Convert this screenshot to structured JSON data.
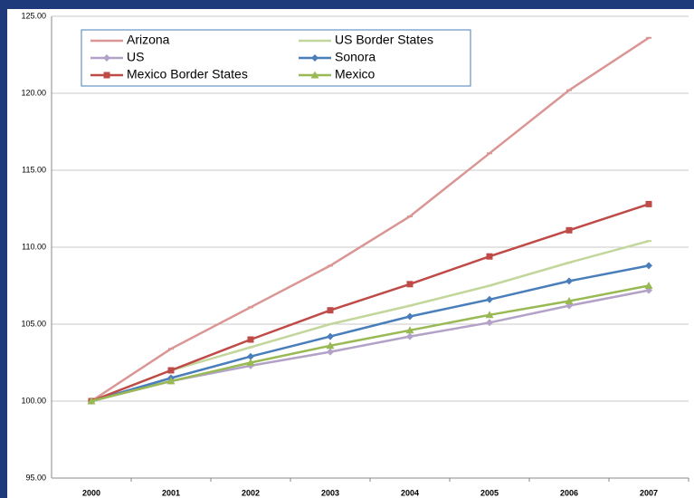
{
  "chart_data": {
    "type": "line",
    "categories": [
      "2000",
      "2001",
      "2002",
      "2003",
      "2004",
      "2005",
      "2006",
      "2007"
    ],
    "series": [
      {
        "name": "Arizona",
        "color": "#d99694",
        "marker": "dash",
        "values": [
          100,
          103.4,
          106.1,
          108.8,
          112.0,
          116.1,
          120.2,
          123.6
        ]
      },
      {
        "name": "US Border States",
        "color": "#c3d69b",
        "marker": "dash",
        "values": [
          100,
          102.0,
          103.5,
          105.0,
          106.2,
          107.5,
          109.0,
          110.4
        ]
      },
      {
        "name": "US",
        "color": "#b3a2c7",
        "marker": "diamond",
        "values": [
          100,
          101.3,
          102.3,
          103.2,
          104.2,
          105.1,
          106.2,
          107.2
        ]
      },
      {
        "name": "Sonora",
        "color": "#4a7ebb",
        "marker": "diamond",
        "values": [
          100,
          101.5,
          102.9,
          104.2,
          105.5,
          106.6,
          107.8,
          108.8
        ]
      },
      {
        "name": "Mexico Border States",
        "color": "#be4b48",
        "marker": "square",
        "values": [
          100,
          102.0,
          104.0,
          105.9,
          107.6,
          109.4,
          111.1,
          112.8
        ]
      },
      {
        "name": "Mexico",
        "color": "#98b954",
        "marker": "triangle",
        "values": [
          100,
          101.3,
          102.5,
          103.6,
          104.6,
          105.6,
          106.5,
          107.5
        ]
      }
    ],
    "ylim": [
      95,
      125
    ],
    "yticks": [
      {
        "value": 95,
        "label": "95.00"
      },
      {
        "value": 100,
        "label": "100.00"
      },
      {
        "value": 105,
        "label": "105.00"
      },
      {
        "value": 110,
        "label": "110.00"
      },
      {
        "value": 115,
        "label": "115.00"
      },
      {
        "value": 120,
        "label": "120.00"
      },
      {
        "value": 125,
        "label": "125.00"
      }
    ],
    "grid": true
  }
}
